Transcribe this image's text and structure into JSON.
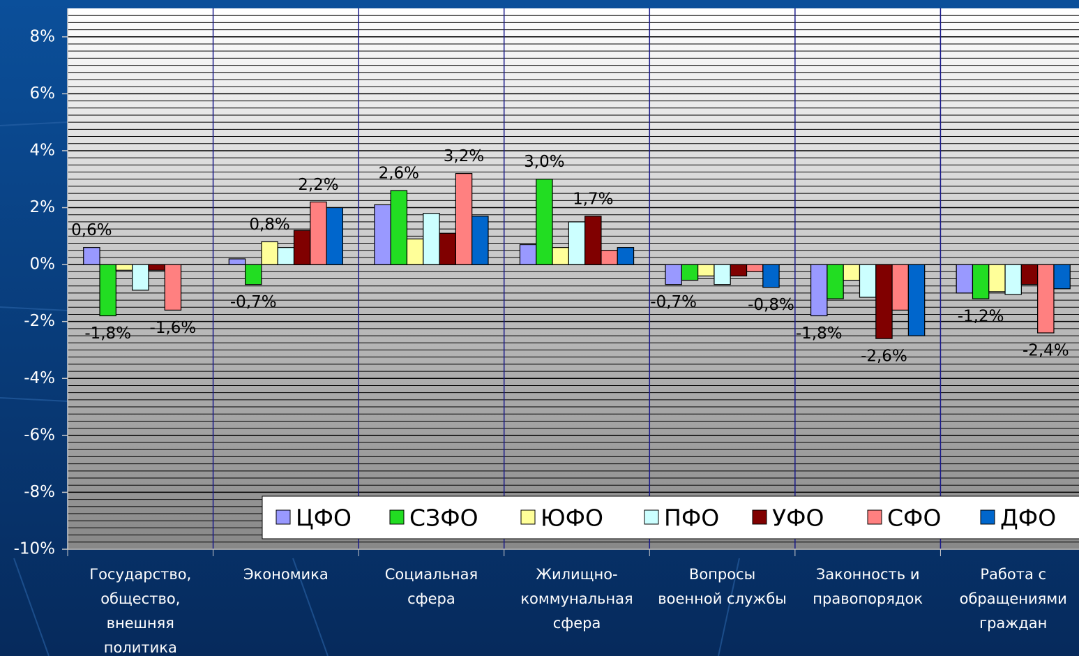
{
  "chart_data": {
    "type": "bar",
    "categories": [
      "Государство,\nобщество,\nвнешняя\nполитика",
      "Экономика",
      "Социальная\nсфера",
      "Жилищно-\nкоммунальная\nсфера",
      "Вопросы\nвоенной службы",
      "Законность и\nправопорядок",
      "Работа с\nобращениями\nграждан"
    ],
    "series": [
      {
        "name": "ЦФО",
        "color": "#9999ff",
        "values": [
          0.6,
          0.2,
          2.1,
          0.7,
          -0.7,
          -1.8,
          -1.0
        ],
        "value_labels": [
          "0,6%",
          null,
          null,
          null,
          "-0,7%",
          "-1,8%",
          null
        ]
      },
      {
        "name": "СЗФО",
        "color": "#22dd22",
        "values": [
          -1.8,
          -0.7,
          2.6,
          3.0,
          -0.55,
          -1.2,
          -1.2
        ],
        "value_labels": [
          "-1,8%",
          "-0,7%",
          "2,6%",
          "3,0%",
          null,
          null,
          "-1,2%"
        ]
      },
      {
        "name": "ЮФО",
        "color": "#ffff99",
        "values": [
          -0.2,
          0.8,
          0.9,
          0.6,
          -0.4,
          -0.55,
          -0.95
        ],
        "value_labels": [
          null,
          "0,8%",
          null,
          null,
          null,
          null,
          null
        ]
      },
      {
        "name": "ПФО",
        "color": "#ccffff",
        "values": [
          -0.9,
          0.6,
          1.8,
          1.5,
          -0.7,
          -1.15,
          -1.05
        ],
        "value_labels": [
          null,
          null,
          null,
          null,
          null,
          null,
          null
        ]
      },
      {
        "name": "УФО",
        "color": "#800000",
        "values": [
          -0.2,
          1.2,
          1.1,
          1.7,
          -0.4,
          -2.6,
          -0.7
        ],
        "value_labels": [
          null,
          null,
          null,
          "1,7%",
          null,
          "-2,6%",
          null
        ]
      },
      {
        "name": "СФО",
        "color": "#ff8080",
        "values": [
          -1.6,
          2.2,
          3.2,
          0.5,
          -0.25,
          -1.6,
          -2.4
        ],
        "value_labels": [
          "-1,6%",
          "2,2%",
          "3,2%",
          null,
          null,
          null,
          "-2,4%"
        ]
      },
      {
        "name": "ДФО",
        "color": "#0066cc",
        "values": [
          0,
          2.0,
          1.7,
          0.6,
          -0.8,
          -2.5,
          -0.85
        ],
        "value_labels": [
          null,
          null,
          null,
          null,
          "-0,8%",
          null,
          null
        ]
      }
    ],
    "ylim": [
      -10,
      9
    ],
    "yticks": [
      {
        "value": -10,
        "label": "-10%"
      },
      {
        "value": -8,
        "label": "-8%"
      },
      {
        "value": -6,
        "label": "-6%"
      },
      {
        "value": -4,
        "label": "-4%"
      },
      {
        "value": -2,
        "label": "-2%"
      },
      {
        "value": 0,
        "label": "0%"
      },
      {
        "value": 2,
        "label": "2%"
      },
      {
        "value": 4,
        "label": "4%"
      },
      {
        "value": 6,
        "label": "6%"
      },
      {
        "value": 8,
        "label": "8%"
      }
    ],
    "grid": true,
    "legend": "lower right"
  }
}
